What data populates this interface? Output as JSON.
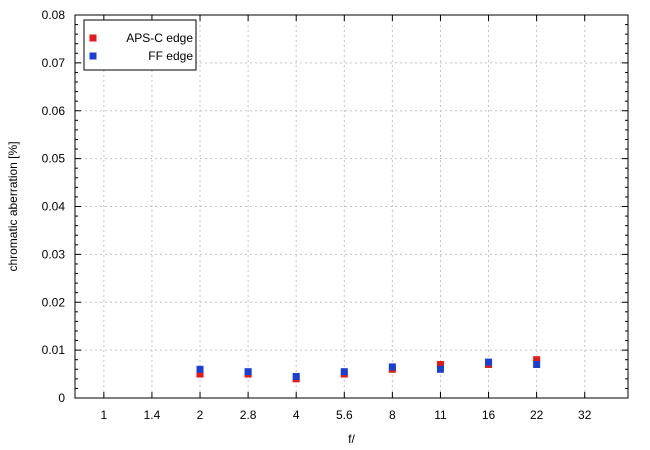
{
  "chart_data": {
    "type": "scatter",
    "xlabel": "f/",
    "ylabel": "chromatic aberration [%]",
    "categories": [
      "1",
      "1.4",
      "2",
      "2.8",
      "4",
      "5.6",
      "8",
      "11",
      "16",
      "22",
      "32"
    ],
    "ylim": [
      0,
      0.08
    ],
    "yticks": [
      "0",
      "0.01",
      "0.02",
      "0.03",
      "0.04",
      "0.05",
      "0.06",
      "0.07",
      "0.08"
    ],
    "grid": true,
    "legend_position": "top-left",
    "series": [
      {
        "name": "APS-C edge",
        "color": "#e41a1c",
        "points": [
          {
            "x": "2",
            "y": 0.005
          },
          {
            "x": "2.8",
            "y": 0.005
          },
          {
            "x": "4",
            "y": 0.004
          },
          {
            "x": "5.6",
            "y": 0.005
          },
          {
            "x": "8",
            "y": 0.006
          },
          {
            "x": "11",
            "y": 0.007
          },
          {
            "x": "16",
            "y": 0.007
          },
          {
            "x": "22",
            "y": 0.008
          }
        ]
      },
      {
        "name": "FF edge",
        "color": "#1a3fd4",
        "points": [
          {
            "x": "2",
            "y": 0.006
          },
          {
            "x": "2.8",
            "y": 0.0055
          },
          {
            "x": "4",
            "y": 0.0045
          },
          {
            "x": "5.6",
            "y": 0.0055
          },
          {
            "x": "8",
            "y": 0.0065
          },
          {
            "x": "11",
            "y": 0.006
          },
          {
            "x": "16",
            "y": 0.0075
          },
          {
            "x": "22",
            "y": 0.007
          }
        ]
      }
    ]
  }
}
